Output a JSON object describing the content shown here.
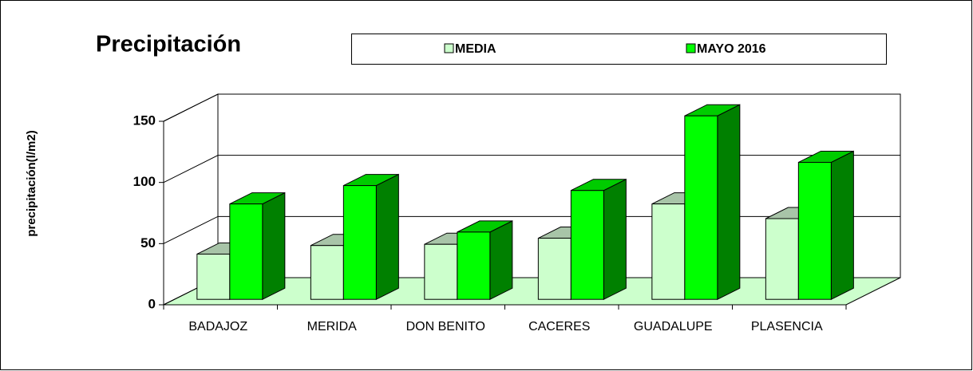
{
  "chart_data": {
    "type": "bar3d",
    "title": "Precipitación",
    "ylabel": "precipitación(l/m2)",
    "categories": [
      "BADAJOZ",
      "MERIDA",
      "DON BENITO",
      "CACERES",
      "GUADALUPE",
      "PLASENCIA"
    ],
    "series": [
      {
        "name": "MEDIA",
        "color": "#ccffcc",
        "values": [
          37,
          44,
          45,
          50,
          78,
          66
        ]
      },
      {
        "name": "MAYO 2016",
        "color": "#00ff00",
        "values": [
          78,
          93,
          55,
          89,
          150,
          112
        ]
      }
    ],
    "ylim": [
      0,
      150
    ],
    "yticks": [
      0,
      50,
      100,
      150
    ],
    "grid": true
  }
}
